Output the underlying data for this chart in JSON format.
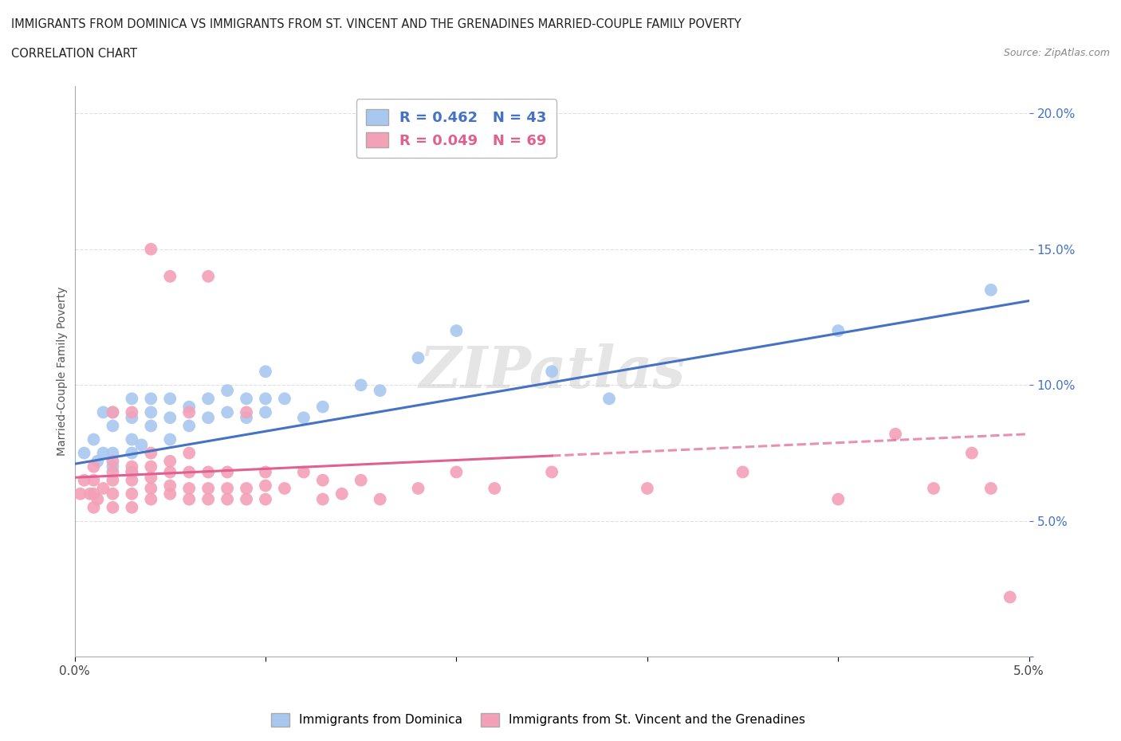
{
  "title_line1": "IMMIGRANTS FROM DOMINICA VS IMMIGRANTS FROM ST. VINCENT AND THE GRENADINES MARRIED-COUPLE FAMILY POVERTY",
  "title_line2": "CORRELATION CHART",
  "source": "Source: ZipAtlas.com",
  "ylabel": "Married-Couple Family Poverty",
  "xlim": [
    0.0,
    0.05
  ],
  "ylim": [
    0.0,
    0.21
  ],
  "xticks": [
    0.0,
    0.01,
    0.02,
    0.03,
    0.04,
    0.05
  ],
  "yticks": [
    0.0,
    0.05,
    0.1,
    0.15,
    0.2
  ],
  "xticklabels": [
    "0.0%",
    "",
    "",
    "",
    "",
    "5.0%"
  ],
  "yticklabels": [
    "",
    "5.0%",
    "10.0%",
    "15.0%",
    "20.0%"
  ],
  "blue_color": "#A8C8F0",
  "pink_color": "#F4A0B8",
  "blue_line_color": "#4472C4",
  "pink_line_color": "#E06090",
  "legend_R1": "R = 0.462",
  "legend_N1": "N = 43",
  "legend_R2": "R = 0.049",
  "legend_N2": "N = 69",
  "blue_line_x0": 0.0,
  "blue_line_y0": 0.071,
  "blue_line_x1": 0.05,
  "blue_line_y1": 0.131,
  "pink_line_x0": 0.0,
  "pink_line_y0": 0.066,
  "pink_line_x1": 0.05,
  "pink_line_y1": 0.082,
  "blue_scatter_x": [
    0.0005,
    0.001,
    0.0012,
    0.0015,
    0.0015,
    0.002,
    0.002,
    0.002,
    0.002,
    0.003,
    0.003,
    0.003,
    0.003,
    0.003,
    0.0035,
    0.004,
    0.004,
    0.004,
    0.005,
    0.005,
    0.005,
    0.006,
    0.006,
    0.007,
    0.007,
    0.008,
    0.008,
    0.009,
    0.009,
    0.01,
    0.01,
    0.01,
    0.011,
    0.012,
    0.013,
    0.015,
    0.016,
    0.018,
    0.02,
    0.025,
    0.028,
    0.04,
    0.048
  ],
  "blue_scatter_y": [
    0.075,
    0.08,
    0.072,
    0.075,
    0.09,
    0.07,
    0.075,
    0.085,
    0.09,
    0.068,
    0.075,
    0.08,
    0.088,
    0.095,
    0.078,
    0.085,
    0.09,
    0.095,
    0.08,
    0.088,
    0.095,
    0.085,
    0.092,
    0.088,
    0.095,
    0.09,
    0.098,
    0.088,
    0.095,
    0.09,
    0.095,
    0.105,
    0.095,
    0.088,
    0.092,
    0.1,
    0.098,
    0.11,
    0.12,
    0.105,
    0.095,
    0.12,
    0.135
  ],
  "pink_scatter_x": [
    0.0003,
    0.0005,
    0.0008,
    0.001,
    0.001,
    0.001,
    0.001,
    0.0012,
    0.0015,
    0.002,
    0.002,
    0.002,
    0.002,
    0.002,
    0.002,
    0.003,
    0.003,
    0.003,
    0.003,
    0.003,
    0.003,
    0.004,
    0.004,
    0.004,
    0.004,
    0.004,
    0.004,
    0.005,
    0.005,
    0.005,
    0.005,
    0.005,
    0.006,
    0.006,
    0.006,
    0.006,
    0.006,
    0.007,
    0.007,
    0.007,
    0.007,
    0.008,
    0.008,
    0.008,
    0.009,
    0.009,
    0.009,
    0.01,
    0.01,
    0.01,
    0.011,
    0.012,
    0.013,
    0.013,
    0.014,
    0.015,
    0.016,
    0.018,
    0.02,
    0.022,
    0.025,
    0.03,
    0.035,
    0.04,
    0.045,
    0.048,
    0.049,
    0.047,
    0.043
  ],
  "pink_scatter_y": [
    0.06,
    0.065,
    0.06,
    0.055,
    0.06,
    0.065,
    0.07,
    0.058,
    0.062,
    0.055,
    0.06,
    0.065,
    0.068,
    0.072,
    0.09,
    0.055,
    0.06,
    0.065,
    0.068,
    0.07,
    0.09,
    0.058,
    0.062,
    0.066,
    0.07,
    0.075,
    0.15,
    0.06,
    0.063,
    0.068,
    0.072,
    0.14,
    0.058,
    0.062,
    0.068,
    0.075,
    0.09,
    0.058,
    0.062,
    0.068,
    0.14,
    0.058,
    0.062,
    0.068,
    0.058,
    0.062,
    0.09,
    0.058,
    0.063,
    0.068,
    0.062,
    0.068,
    0.058,
    0.065,
    0.06,
    0.065,
    0.058,
    0.062,
    0.068,
    0.062,
    0.068,
    0.062,
    0.068,
    0.058,
    0.062,
    0.062,
    0.022,
    0.075,
    0.082
  ],
  "watermark": "ZIPatlas",
  "grid_color": "#CCCCCC",
  "grid_alpha": 0.6
}
